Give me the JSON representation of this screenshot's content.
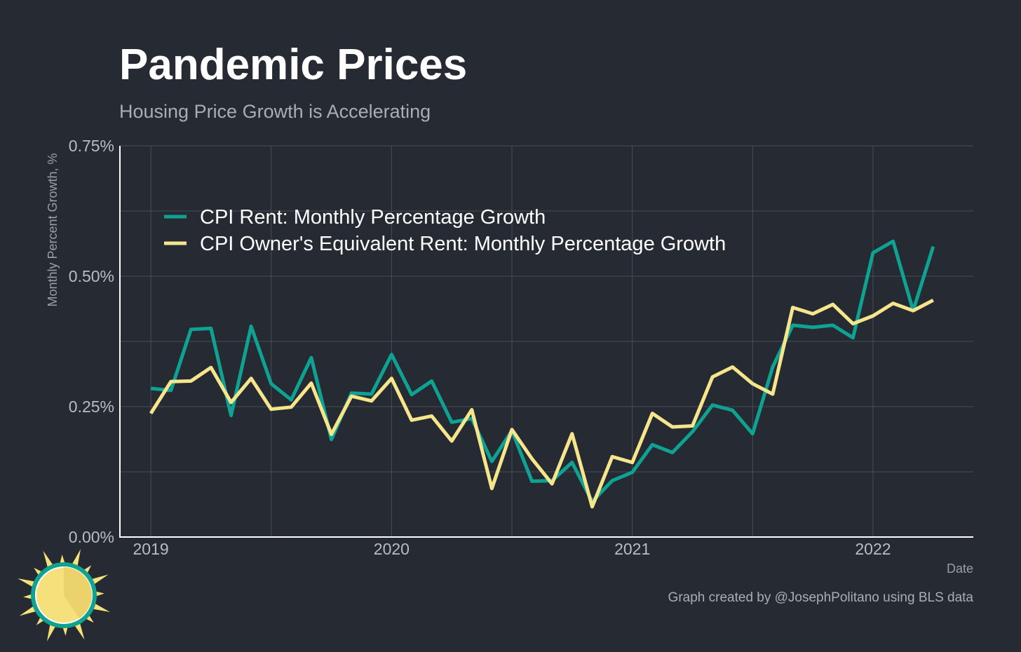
{
  "title": "Pandemic Prices",
  "subtitle": "Housing Price Growth is Accelerating",
  "credit": "Graph created by @JosephPolitano using BLS data",
  "logo": {
    "icon": "sun-logo-icon",
    "colors": {
      "ring": "#0fa292",
      "sun": "#f6e07c",
      "rays": "#f7e27a"
    }
  },
  "chart_data": {
    "type": "line",
    "title": "Pandemic Prices",
    "subtitle": "Housing Price Growth is Accelerating",
    "xlabel": "Date",
    "ylabel": "Monthly Percent Growth, %",
    "x": [
      "2019-01",
      "2019-02",
      "2019-03",
      "2019-04",
      "2019-05",
      "2019-06",
      "2019-07",
      "2019-08",
      "2019-09",
      "2019-10",
      "2019-11",
      "2019-12",
      "2020-01",
      "2020-02",
      "2020-03",
      "2020-04",
      "2020-05",
      "2020-06",
      "2020-07",
      "2020-08",
      "2020-09",
      "2020-10",
      "2020-11",
      "2020-12",
      "2021-01",
      "2021-02",
      "2021-03",
      "2021-04",
      "2021-05",
      "2021-06",
      "2021-07",
      "2021-08",
      "2021-09",
      "2021-10",
      "2021-11",
      "2021-12",
      "2022-01",
      "2022-02",
      "2022-03",
      "2022-04"
    ],
    "xlim": [
      "2018-11-15",
      "2022-06-01"
    ],
    "xticks": [
      {
        "value": "2019-01",
        "label": "2019"
      },
      {
        "value": "2020-01",
        "label": "2020"
      },
      {
        "value": "2021-01",
        "label": "2021"
      },
      {
        "value": "2022-01",
        "label": "2022"
      }
    ],
    "ylim": [
      0,
      0.75
    ],
    "yticks": [
      {
        "value": 0,
        "label": "0.00%"
      },
      {
        "value": 0.25,
        "label": "0.25%"
      },
      {
        "value": 0.5,
        "label": "0.50%"
      },
      {
        "value": 0.75,
        "label": "0.75%"
      }
    ],
    "grid": true,
    "legend_position": "top-left",
    "series": [
      {
        "name": "CPI Rent: Monthly Percentage Growth",
        "color": "#0fa292",
        "values": [
          0.285,
          0.281,
          0.398,
          0.4,
          0.233,
          0.404,
          0.294,
          0.263,
          0.344,
          0.187,
          0.276,
          0.274,
          0.35,
          0.273,
          0.299,
          0.22,
          0.227,
          0.145,
          0.204,
          0.107,
          0.108,
          0.143,
          0.068,
          0.108,
          0.124,
          0.177,
          0.162,
          0.202,
          0.253,
          0.243,
          0.198,
          0.326,
          0.406,
          0.402,
          0.406,
          0.382,
          0.545,
          0.567,
          0.434,
          0.557
        ]
      },
      {
        "name": "CPI Owner's Equivalent Rent: Monthly Percentage Growth",
        "color": "#f7e58c",
        "values": [
          0.237,
          0.298,
          0.299,
          0.325,
          0.258,
          0.304,
          0.245,
          0.249,
          0.295,
          0.197,
          0.27,
          0.261,
          0.304,
          0.224,
          0.232,
          0.184,
          0.244,
          0.093,
          0.206,
          0.15,
          0.102,
          0.198,
          0.058,
          0.154,
          0.143,
          0.237,
          0.211,
          0.213,
          0.307,
          0.326,
          0.294,
          0.274,
          0.44,
          0.428,
          0.446,
          0.409,
          0.424,
          0.448,
          0.434,
          0.454
        ]
      }
    ]
  }
}
